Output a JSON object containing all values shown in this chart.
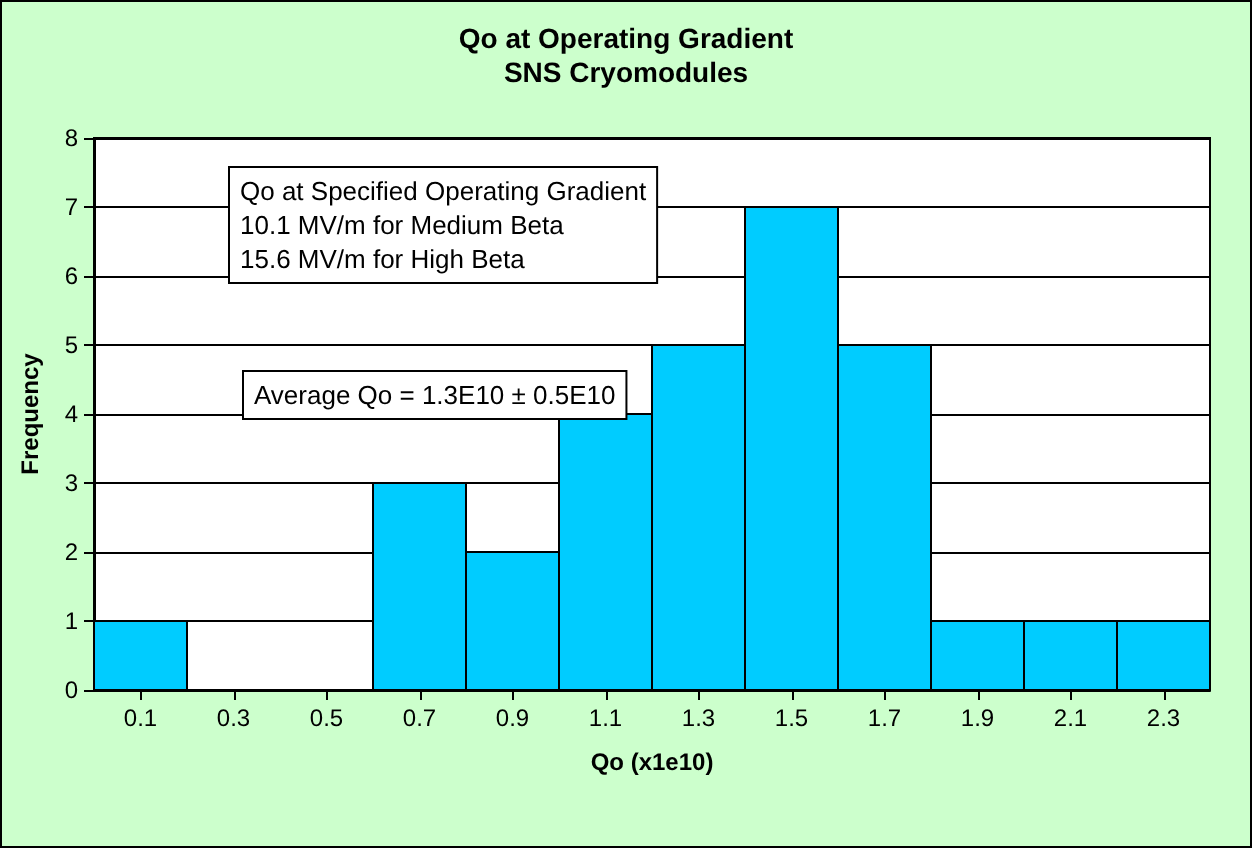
{
  "chart_data": {
    "type": "histogram",
    "title": "Qo at Operating Gradient",
    "subtitle": "SNS Cryomodules",
    "xlabel": "Qo (x1e10)",
    "ylabel": "Frequency",
    "bins": [
      0,
      0.2,
      0.4,
      0.6,
      0.8,
      1,
      1.2,
      1.4,
      1.6,
      1.8,
      2,
      2.2,
      2.4
    ],
    "values": [
      1,
      0,
      0,
      3,
      2,
      4,
      5,
      7,
      5,
      1,
      1,
      1
    ],
    "color": "#00ccff",
    "xlim": [
      0,
      2.4
    ],
    "xticks": [
      0.1,
      0.3,
      0.5,
      0.7,
      0.9,
      1.1,
      1.3,
      1.5,
      1.7,
      1.9,
      2.1,
      2.3
    ],
    "ylim": [
      0,
      8
    ],
    "yticks": [
      0,
      1,
      2,
      3,
      4,
      5,
      6,
      7,
      8
    ],
    "grid": "y",
    "annotations": [
      "Qo at Specified Operating Gradient\n10.1 MV/m for Medium Beta\n15.6 MV/m for High Beta",
      "Average Qo = 1.3E10 ± 0.5E10"
    ]
  }
}
